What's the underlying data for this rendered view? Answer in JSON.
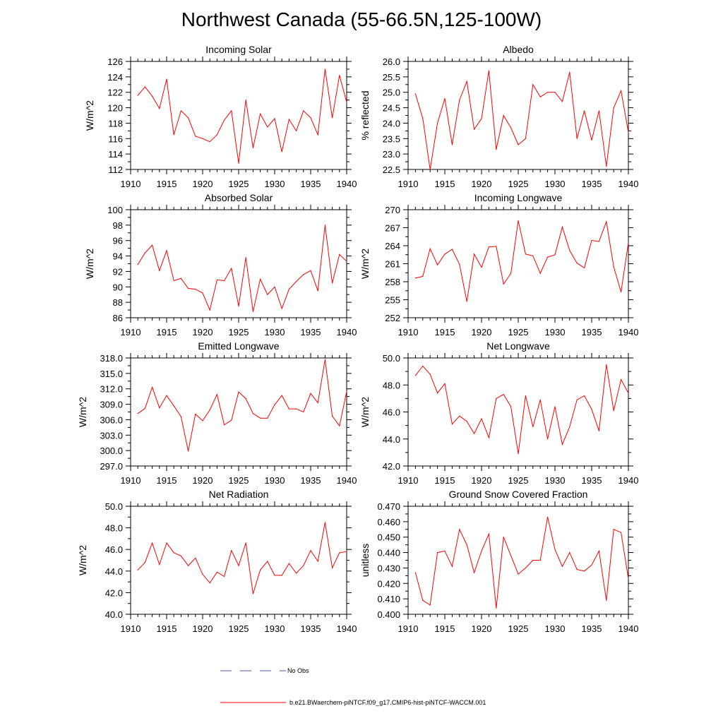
{
  "title": "Northwest Canada (55-66.5N,125-100W)",
  "colors": {
    "model": "#ff0000",
    "obs": "#4a5aa8",
    "axis": "#000000"
  },
  "legend": [
    {
      "label": "No Obs",
      "style": "dashed",
      "color": "#4a5aa8"
    },
    {
      "label": "b.e21.BWaerchem-piNTCF.f09_g17.CMIP6-hist-piNTCF-WACCM.001",
      "style": "solid",
      "color": "#ff0000"
    }
  ],
  "chart_data": [
    {
      "type": "line",
      "title": "Incoming Solar",
      "ylabel": "W/m^2",
      "xlim": [
        1910,
        1940
      ],
      "xticks": [
        "1910",
        "1915",
        "1920",
        "1925",
        "1930",
        "1935",
        "1940"
      ],
      "ylim": [
        112,
        126
      ],
      "yticks": [
        "112",
        "114",
        "116",
        "118",
        "120",
        "122",
        "124",
        "126"
      ],
      "x": [
        1911,
        1912,
        1913,
        1914,
        1915,
        1916,
        1917,
        1918,
        1919,
        1920,
        1921,
        1922,
        1923,
        1924,
        1925,
        1926,
        1927,
        1928,
        1929,
        1930,
        1931,
        1932,
        1933,
        1934,
        1935,
        1936,
        1937,
        1938,
        1939,
        1940
      ],
      "series": [
        {
          "values": [
            121.6,
            122.7,
            121.5,
            119.9,
            123.7,
            116.5,
            119.6,
            118.7,
            116.3,
            116.0,
            115.6,
            116.5,
            118.4,
            119.6,
            112.8,
            121.0,
            114.8,
            119.2,
            117.5,
            118.6,
            114.3,
            118.5,
            117.0,
            119.6,
            118.7,
            116.5,
            125.0,
            118.7,
            124.2,
            120.7
          ]
        }
      ]
    },
    {
      "type": "line",
      "title": "Albedo",
      "ylabel": "% reflected",
      "xlim": [
        1910,
        1940
      ],
      "xticks": [
        "1910",
        "1915",
        "1920",
        "1925",
        "1930",
        "1935",
        "1940"
      ],
      "ylim": [
        22.5,
        26.0
      ],
      "yticks": [
        "22.5",
        "23.0",
        "23.5",
        "24.0",
        "24.5",
        "25.0",
        "25.5",
        "26.0"
      ],
      "x": [
        1911,
        1912,
        1913,
        1914,
        1915,
        1916,
        1917,
        1918,
        1919,
        1920,
        1921,
        1922,
        1923,
        1924,
        1925,
        1926,
        1927,
        1928,
        1929,
        1930,
        1931,
        1932,
        1933,
        1934,
        1935,
        1936,
        1937,
        1938,
        1939,
        1940
      ],
      "series": [
        {
          "values": [
            24.95,
            24.15,
            22.5,
            24.0,
            24.8,
            23.3,
            24.75,
            25.35,
            23.8,
            24.15,
            25.7,
            23.15,
            24.25,
            23.85,
            23.3,
            23.5,
            25.25,
            24.85,
            25.0,
            25.0,
            24.7,
            25.65,
            23.5,
            24.4,
            23.45,
            24.4,
            22.6,
            24.5,
            25.05,
            23.7
          ]
        }
      ]
    },
    {
      "type": "line",
      "title": "Absorbed Solar",
      "ylabel": "W/m^2",
      "xlim": [
        1910,
        1940
      ],
      "xticks": [
        "1910",
        "1915",
        "1920",
        "1925",
        "1930",
        "1935",
        "1940"
      ],
      "ylim": [
        86,
        100
      ],
      "yticks": [
        "86",
        "88",
        "90",
        "92",
        "94",
        "96",
        "98",
        "100"
      ],
      "x": [
        1911,
        1912,
        1913,
        1914,
        1915,
        1916,
        1917,
        1918,
        1919,
        1920,
        1921,
        1922,
        1923,
        1924,
        1925,
        1926,
        1927,
        1928,
        1929,
        1930,
        1931,
        1932,
        1933,
        1934,
        1935,
        1936,
        1937,
        1938,
        1939,
        1940
      ],
      "series": [
        {
          "values": [
            92.9,
            94.4,
            95.4,
            92.1,
            94.7,
            90.8,
            91.1,
            89.8,
            89.7,
            89.2,
            87.0,
            90.9,
            90.8,
            92.4,
            87.5,
            93.8,
            86.8,
            91.0,
            89.0,
            90.0,
            87.2,
            89.7,
            90.7,
            91.6,
            92.1,
            89.5,
            98.0,
            90.5,
            94.2,
            93.3
          ]
        }
      ]
    },
    {
      "type": "line",
      "title": "Incoming Longwave",
      "ylabel": "W/m^2",
      "xlim": [
        1910,
        1940
      ],
      "xticks": [
        "1910",
        "1915",
        "1920",
        "1925",
        "1930",
        "1935",
        "1940"
      ],
      "ylim": [
        252,
        270
      ],
      "yticks": [
        "252",
        "255",
        "258",
        "261",
        "264",
        "267",
        "270"
      ],
      "x": [
        1911,
        1912,
        1913,
        1914,
        1915,
        1916,
        1917,
        1918,
        1919,
        1920,
        1921,
        1922,
        1923,
        1924,
        1925,
        1926,
        1927,
        1928,
        1929,
        1930,
        1931,
        1932,
        1933,
        1934,
        1935,
        1936,
        1937,
        1938,
        1939,
        1940
      ],
      "series": [
        {
          "values": [
            258.6,
            258.9,
            263.5,
            260.8,
            262.6,
            263.4,
            260.9,
            254.7,
            262.6,
            260.4,
            263.8,
            263.9,
            257.6,
            259.4,
            268.2,
            262.6,
            262.3,
            259.4,
            262.1,
            262.5,
            267.1,
            263.2,
            261.1,
            260.3,
            264.9,
            264.7,
            268.0,
            260.5,
            256.3,
            264.5
          ]
        }
      ]
    },
    {
      "type": "line",
      "title": "Emitted Longwave",
      "ylabel": "W/m^2",
      "xlim": [
        1910,
        1940
      ],
      "xticks": [
        "1910",
        "1915",
        "1920",
        "1925",
        "1930",
        "1935",
        "1940"
      ],
      "ylim": [
        297.0,
        318.0
      ],
      "yticks": [
        "297.0",
        "300.0",
        "303.0",
        "306.0",
        "309.0",
        "312.0",
        "315.0",
        "318.0"
      ],
      "x": [
        1911,
        1912,
        1913,
        1914,
        1915,
        1916,
        1917,
        1918,
        1919,
        1920,
        1921,
        1922,
        1923,
        1924,
        1925,
        1926,
        1927,
        1928,
        1929,
        1930,
        1931,
        1932,
        1933,
        1934,
        1935,
        1936,
        1937,
        1938,
        1939,
        1940
      ],
      "series": [
        {
          "values": [
            307.2,
            308.2,
            312.3,
            308.3,
            310.7,
            308.7,
            306.6,
            299.9,
            307.1,
            305.8,
            307.9,
            310.9,
            305.0,
            305.9,
            311.4,
            310.1,
            307.2,
            306.3,
            306.3,
            308.9,
            310.7,
            308.1,
            308.1,
            307.5,
            311.1,
            309.3,
            317.7,
            306.7,
            304.8,
            311.5
          ]
        }
      ]
    },
    {
      "type": "line",
      "title": "Net Longwave",
      "ylabel": "W/m^2",
      "xlim": [
        1910,
        1940
      ],
      "xticks": [
        "1910",
        "1915",
        "1920",
        "1925",
        "1930",
        "1935",
        "1940"
      ],
      "ylim": [
        42.0,
        50.0
      ],
      "yticks": [
        "42.0",
        "44.0",
        "46.0",
        "48.0",
        "50.0"
      ],
      "x": [
        1911,
        1912,
        1913,
        1914,
        1915,
        1916,
        1917,
        1918,
        1919,
        1920,
        1921,
        1922,
        1923,
        1924,
        1925,
        1926,
        1927,
        1928,
        1929,
        1930,
        1931,
        1932,
        1933,
        1934,
        1935,
        1936,
        1937,
        1938,
        1939,
        1940
      ],
      "series": [
        {
          "values": [
            48.7,
            49.4,
            48.8,
            47.4,
            48.1,
            45.1,
            45.7,
            45.3,
            44.4,
            45.5,
            44.1,
            47.0,
            47.3,
            46.4,
            42.9,
            47.2,
            44.9,
            46.9,
            44.0,
            46.4,
            43.6,
            44.9,
            46.9,
            47.2,
            46.2,
            44.6,
            49.5,
            46.1,
            48.4,
            47.4
          ]
        }
      ]
    },
    {
      "type": "line",
      "title": "Net Radiation",
      "ylabel": "W/m^2",
      "xlim": [
        1910,
        1940
      ],
      "xticks": [
        "1910",
        "1915",
        "1920",
        "1925",
        "1930",
        "1935",
        "1940"
      ],
      "ylim": [
        40.0,
        50.0
      ],
      "yticks": [
        "40.0",
        "42.0",
        "44.0",
        "46.0",
        "48.0",
        "50.0"
      ],
      "x": [
        1911,
        1912,
        1913,
        1914,
        1915,
        1916,
        1917,
        1918,
        1919,
        1920,
        1921,
        1922,
        1923,
        1924,
        1925,
        1926,
        1927,
        1928,
        1929,
        1930,
        1931,
        1932,
        1933,
        1934,
        1935,
        1936,
        1937,
        1938,
        1939,
        1940
      ],
      "series": [
        {
          "values": [
            44.1,
            44.8,
            46.6,
            44.6,
            46.6,
            45.7,
            45.4,
            44.5,
            45.2,
            43.7,
            42.9,
            43.9,
            43.5,
            45.9,
            44.5,
            46.6,
            41.9,
            44.1,
            44.9,
            43.6,
            43.6,
            44.7,
            43.8,
            44.5,
            45.9,
            44.9,
            48.5,
            44.3,
            45.7,
            45.8
          ]
        }
      ]
    },
    {
      "type": "line",
      "title": "Ground Snow Covered Fraction",
      "ylabel": "unitless",
      "xlim": [
        1910,
        1940
      ],
      "xticks": [
        "1910",
        "1915",
        "1920",
        "1925",
        "1930",
        "1935",
        "1940"
      ],
      "ylim": [
        0.4,
        0.47
      ],
      "yticks": [
        "0.400",
        "0.410",
        "0.420",
        "0.430",
        "0.440",
        "0.450",
        "0.460",
        "0.470"
      ],
      "x": [
        1911,
        1912,
        1913,
        1914,
        1915,
        1916,
        1917,
        1918,
        1919,
        1920,
        1921,
        1922,
        1923,
        1924,
        1925,
        1926,
        1927,
        1928,
        1929,
        1930,
        1931,
        1932,
        1933,
        1934,
        1935,
        1936,
        1937,
        1938,
        1939,
        1940
      ],
      "series": [
        {
          "values": [
            0.427,
            0.409,
            0.406,
            0.44,
            0.441,
            0.431,
            0.455,
            0.445,
            0.427,
            0.441,
            0.452,
            0.404,
            0.45,
            0.438,
            0.426,
            0.43,
            0.435,
            0.435,
            0.463,
            0.442,
            0.431,
            0.44,
            0.429,
            0.428,
            0.432,
            0.441,
            0.409,
            0.455,
            0.453,
            0.423
          ]
        }
      ]
    }
  ]
}
